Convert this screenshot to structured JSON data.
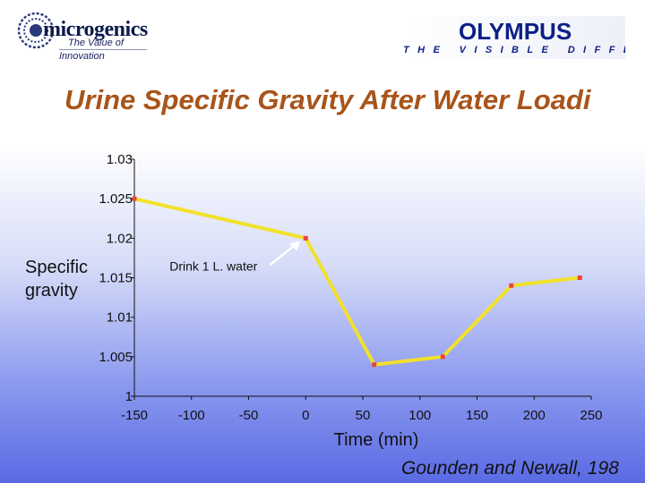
{
  "header": {
    "left_logo_name": "microgenics",
    "left_logo_tagline_1": "The Value of",
    "left_logo_tagline_2": "Innovation",
    "right_logo_name": "OLYMPUS",
    "right_logo_tagline": "THE VISIBLE DIFFERENCE"
  },
  "source": "Gounden and Newall, 198",
  "colors": {
    "title": "#a8541a",
    "line": "#f2e12a",
    "marker": "#e8453c",
    "arrow": "#ffffff"
  },
  "chart_data": {
    "type": "line",
    "title": "Urine Specific Gravity After Water Loadi",
    "xlabel": "Time (min)",
    "ylabel_lines": [
      "Specific",
      "gravity"
    ],
    "x": [
      -150,
      0,
      60,
      120,
      180,
      240
    ],
    "series": [
      {
        "values": [
          1.025,
          1.02,
          1.004,
          1.005,
          1.014,
          1.015
        ]
      }
    ],
    "xlim": [
      -150,
      250
    ],
    "ylim": [
      1,
      1.03
    ],
    "x_ticks": [
      -150,
      -100,
      -50,
      0,
      50,
      100,
      150,
      200,
      250
    ],
    "x_tick_labels": [
      "-150",
      "-100",
      "-50",
      "0",
      "50",
      "100",
      "150",
      "200",
      "250"
    ],
    "y_ticks": [
      1,
      1.005,
      1.01,
      1.015,
      1.02,
      1.025,
      1.03
    ],
    "y_tick_labels": [
      "1",
      "1.005",
      "1.01",
      "1.015",
      "1.02",
      "1.025",
      "1.03"
    ],
    "grid": false,
    "annotations": [
      {
        "text": "Drink 1 L. water",
        "x": 0,
        "y": 1.02
      }
    ]
  }
}
